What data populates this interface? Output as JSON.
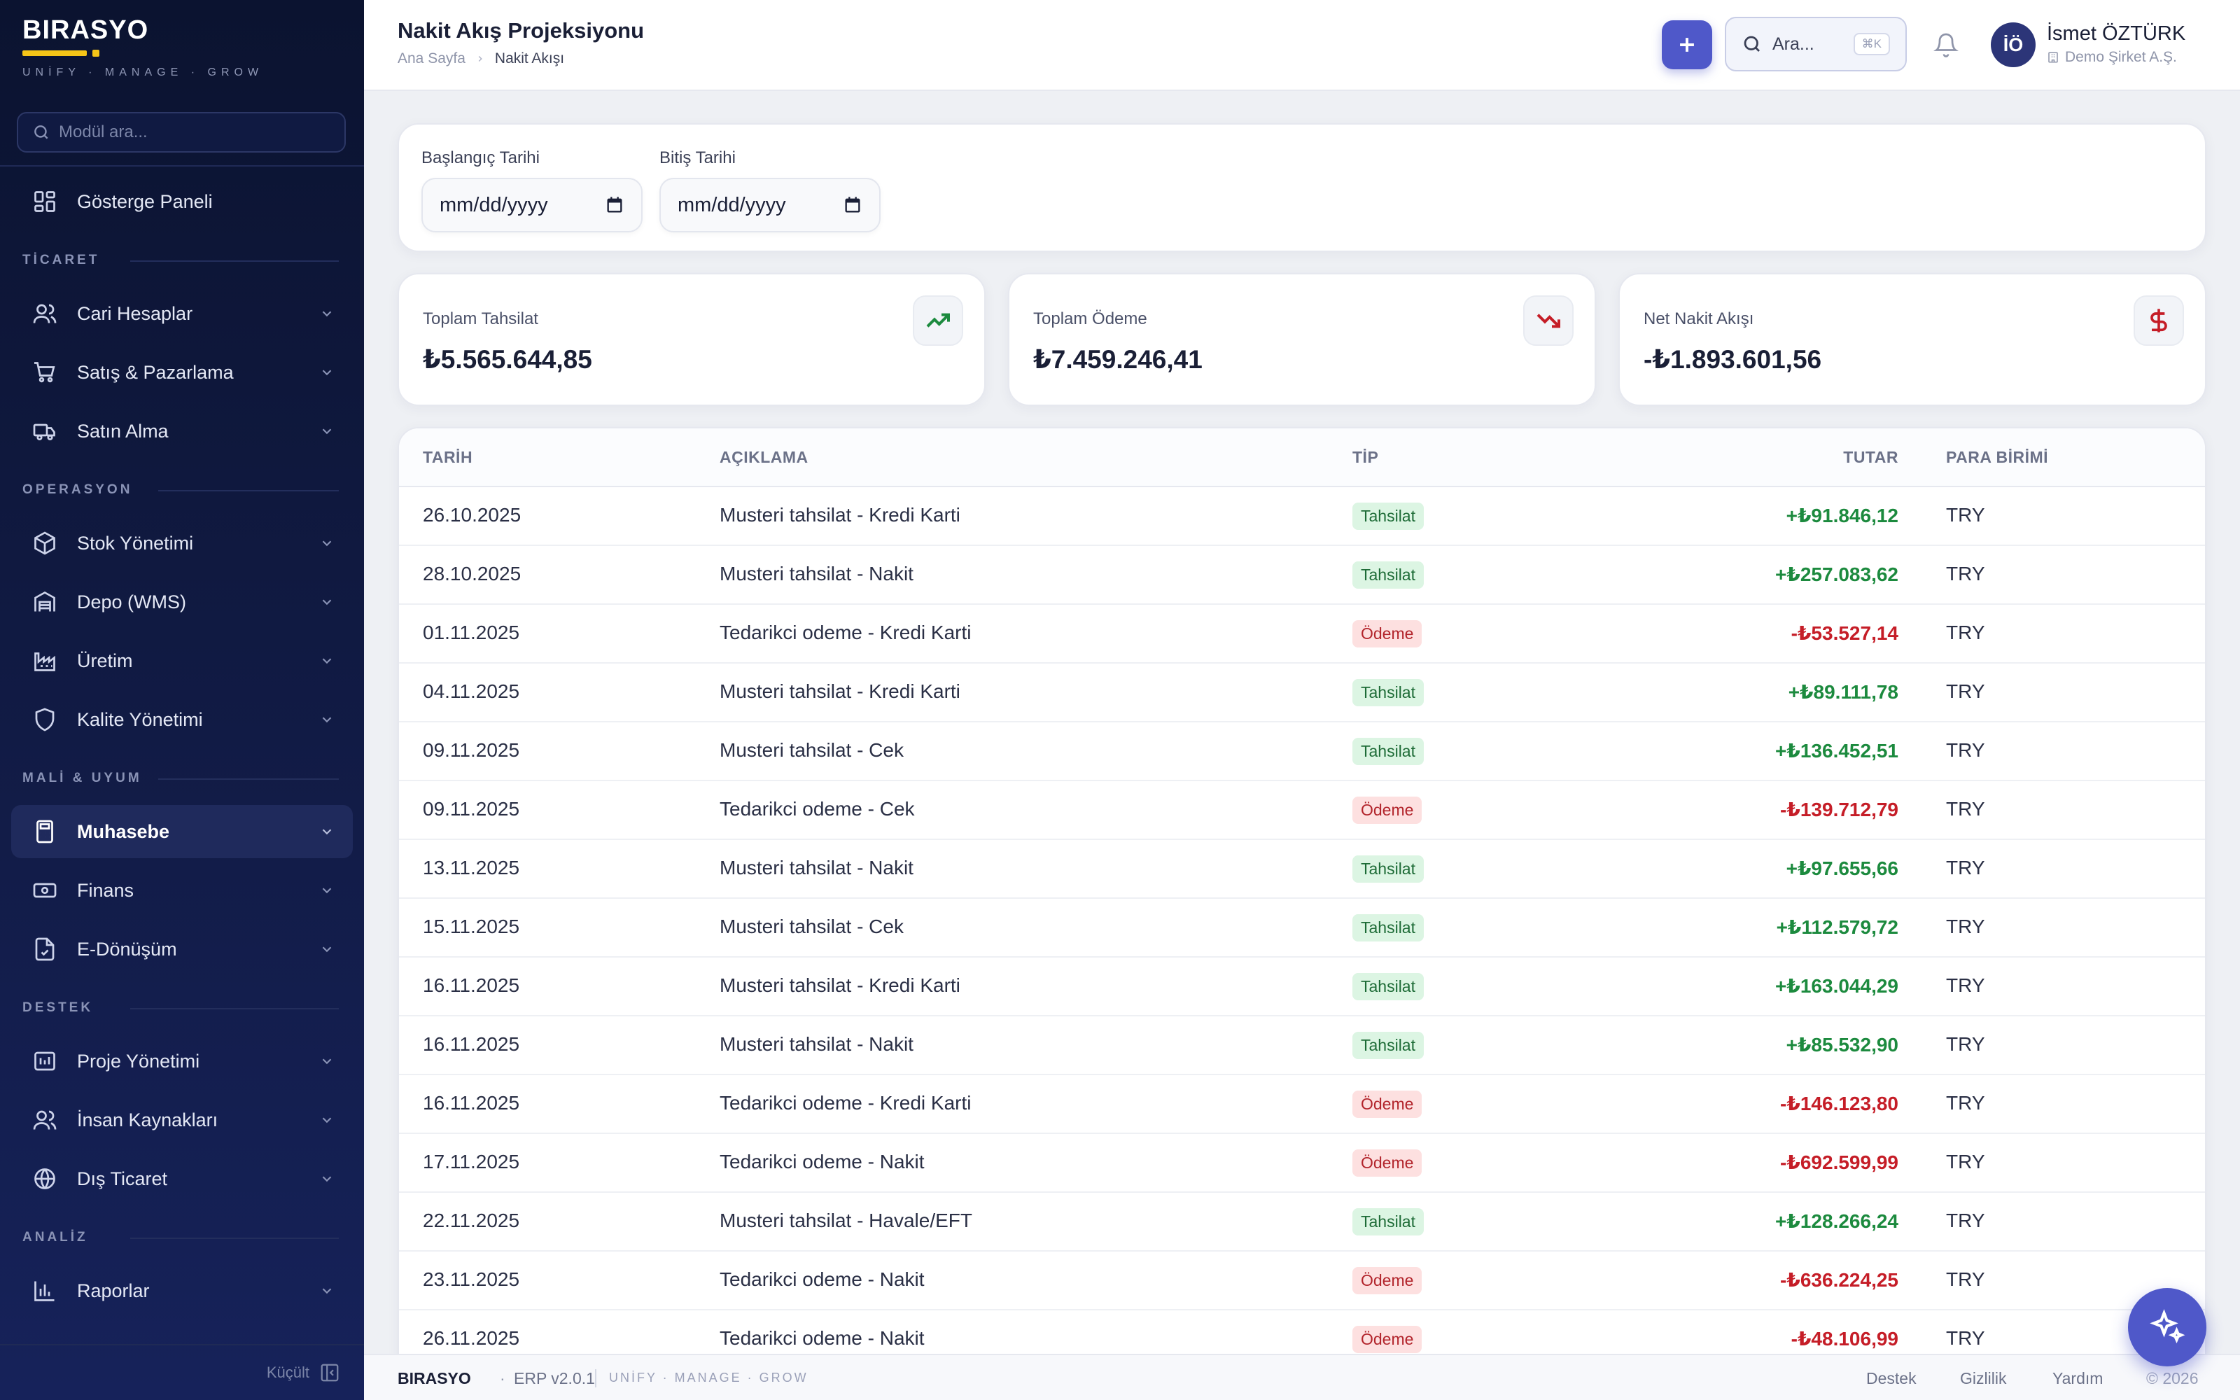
{
  "brand": {
    "name": "BIRASYO",
    "tagline": "UNİFY · MANAGE · GROW"
  },
  "sidebar": {
    "search_placeholder": "Modül ara...",
    "dashboard": "Gösterge Paneli",
    "sections": {
      "ticaret": "TİCARET",
      "operasyon": "OPERASYON",
      "mali": "MALİ & UYUM",
      "destek": "DESTEK",
      "analiz": "ANALİZ"
    },
    "items": {
      "cari": "Cari Hesaplar",
      "satis": "Satış & Pazarlama",
      "satin": "Satın Alma",
      "stok": "Stok Yönetimi",
      "depo": "Depo (WMS)",
      "uretim": "Üretim",
      "kalite": "Kalite Yönetimi",
      "muhasebe": "Muhasebe",
      "finans": "Finans",
      "edonusum": "E-Dönüşüm",
      "proje": "Proje Yönetimi",
      "ik": "İnsan Kaynakları",
      "dis": "Dış Ticaret",
      "raporlar": "Raporlar"
    },
    "collapse_label": "Küçült"
  },
  "header": {
    "title": "Nakit Akış Projeksiyonu",
    "breadcrumb_home": "Ana Sayfa",
    "breadcrumb_current": "Nakit Akışı",
    "search_label": "Ara...",
    "search_shortcut": "⌘K",
    "user_initials": "İÖ",
    "user_name": "İsmet ÖZTÜRK",
    "user_company": "Demo Şirket A.Ş."
  },
  "filters": {
    "start_label": "Başlangıç Tarihi",
    "start_placeholder": "mm/dd/yyyy",
    "end_label": "Bitiş Tarihi",
    "end_placeholder": "mm/dd/yyyy"
  },
  "stats": {
    "collections_label": "Toplam Tahsilat",
    "collections_value": "₺5.565.644,85",
    "payments_label": "Toplam Ödeme",
    "payments_value": "₺7.459.246,41",
    "net_label": "Net Nakit Akışı",
    "net_value": "-₺1.893.601,56"
  },
  "colors": {
    "positive": "#1c8a3e",
    "negative": "#c51d27",
    "accent": "#4f58c9",
    "sidebar": "#121c48"
  },
  "table": {
    "columns": {
      "date": "TARİH",
      "desc": "AÇIKLAMA",
      "type": "TİP",
      "amount": "TUTAR",
      "currency": "PARA BİRİMİ"
    },
    "rows": [
      {
        "date": "26.10.2025",
        "desc": "Musteri tahsilat - Kredi Karti",
        "type": "Tahsilat",
        "amount": "+₺91.846,12",
        "currency": "TRY"
      },
      {
        "date": "28.10.2025",
        "desc": "Musteri tahsilat - Nakit",
        "type": "Tahsilat",
        "amount": "+₺257.083,62",
        "currency": "TRY"
      },
      {
        "date": "01.11.2025",
        "desc": "Tedarikci odeme - Kredi Karti",
        "type": "Ödeme",
        "amount": "-₺53.527,14",
        "currency": "TRY"
      },
      {
        "date": "04.11.2025",
        "desc": "Musteri tahsilat - Kredi Karti",
        "type": "Tahsilat",
        "amount": "+₺89.111,78",
        "currency": "TRY"
      },
      {
        "date": "09.11.2025",
        "desc": "Musteri tahsilat - Cek",
        "type": "Tahsilat",
        "amount": "+₺136.452,51",
        "currency": "TRY"
      },
      {
        "date": "09.11.2025",
        "desc": "Tedarikci odeme - Cek",
        "type": "Ödeme",
        "amount": "-₺139.712,79",
        "currency": "TRY"
      },
      {
        "date": "13.11.2025",
        "desc": "Musteri tahsilat - Nakit",
        "type": "Tahsilat",
        "amount": "+₺97.655,66",
        "currency": "TRY"
      },
      {
        "date": "15.11.2025",
        "desc": "Musteri tahsilat - Cek",
        "type": "Tahsilat",
        "amount": "+₺112.579,72",
        "currency": "TRY"
      },
      {
        "date": "16.11.2025",
        "desc": "Musteri tahsilat - Kredi Karti",
        "type": "Tahsilat",
        "amount": "+₺163.044,29",
        "currency": "TRY"
      },
      {
        "date": "16.11.2025",
        "desc": "Musteri tahsilat - Nakit",
        "type": "Tahsilat",
        "amount": "+₺85.532,90",
        "currency": "TRY"
      },
      {
        "date": "16.11.2025",
        "desc": "Tedarikci odeme - Kredi Karti",
        "type": "Ödeme",
        "amount": "-₺146.123,80",
        "currency": "TRY"
      },
      {
        "date": "17.11.2025",
        "desc": "Tedarikci odeme - Nakit",
        "type": "Ödeme",
        "amount": "-₺692.599,99",
        "currency": "TRY"
      },
      {
        "date": "22.11.2025",
        "desc": "Musteri tahsilat - Havale/EFT",
        "type": "Tahsilat",
        "amount": "+₺128.266,24",
        "currency": "TRY"
      },
      {
        "date": "23.11.2025",
        "desc": "Tedarikci odeme - Nakit",
        "type": "Ödeme",
        "amount": "-₺636.224,25",
        "currency": "TRY"
      },
      {
        "date": "26.11.2025",
        "desc": "Tedarikci odeme - Nakit",
        "type": "Ödeme",
        "amount": "-₺48.106,99",
        "currency": "TRY"
      }
    ]
  },
  "footer": {
    "brand": "BIRASYO",
    "version": "ERP v2.0.1",
    "tagline": "UNİFY · MANAGE · GROW",
    "support": "Destek",
    "privacy": "Gizlilik",
    "help": "Yardım",
    "copyright": "© 2026"
  }
}
